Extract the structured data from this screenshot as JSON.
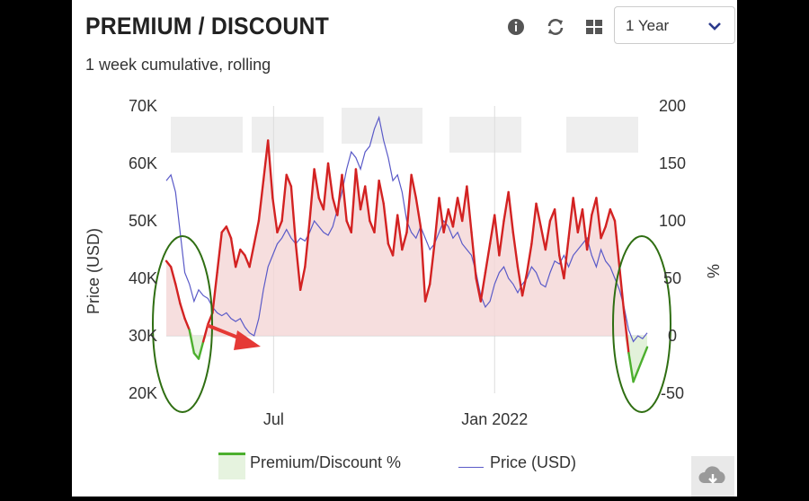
{
  "header": {
    "title": "PREMIUM / DISCOUNT",
    "subtitle": "1 week cumulative, rolling",
    "range_value": "1 Year"
  },
  "toolbar": {
    "icons": [
      "info-icon",
      "refresh-icon",
      "grid-icon",
      "chevron-down-icon",
      "cloud-download-icon"
    ]
  },
  "legend": {
    "premium_label": "Premium/Discount %",
    "price_label": "Price (USD)"
  },
  "colors": {
    "premium_positive": "#d32222",
    "premium_negative": "#4caf2e",
    "premium_fill": "#f4d6d6",
    "price_line": "#5a5ac8",
    "annotation_circle": "#2f6e12",
    "annotation_arrow": "#e53935"
  },
  "chart_data": {
    "type": "line",
    "title": "PREMIUM / DISCOUNT",
    "subtitle": "1 week cumulative, rolling",
    "x_ticks": [
      "Jul",
      "Jan 2022"
    ],
    "left_axis": {
      "label": "Price (USD)",
      "ticks": [
        "20K",
        "30K",
        "40K",
        "50K",
        "60K",
        "70K"
      ],
      "range": [
        20000,
        70000
      ]
    },
    "right_axis": {
      "label": "%",
      "ticks": [
        "-50",
        "0",
        "50",
        "100",
        "150",
        "200"
      ],
      "range": [
        -50,
        200
      ]
    },
    "x_range": [
      0,
      52
    ],
    "grid": "vertical at Jul and Jan 2022, horizontal at 0%",
    "series": [
      {
        "name": "Premium/Discount %",
        "axis": "right",
        "x": [
          0,
          0.5,
          1,
          1.5,
          2,
          2.5,
          3,
          3.5,
          4,
          4.5,
          5,
          5.5,
          6,
          6.5,
          7,
          7.5,
          8,
          8.5,
          9,
          9.5,
          10,
          10.5,
          11,
          11.5,
          12,
          12.5,
          13,
          13.5,
          14,
          14.5,
          15,
          15.5,
          16,
          16.5,
          17,
          17.5,
          18,
          18.5,
          19,
          19.5,
          20,
          20.5,
          21,
          21.5,
          22,
          22.5,
          23,
          23.5,
          24,
          24.5,
          25,
          25.5,
          26,
          26.5,
          27,
          27.5,
          28,
          28.5,
          29,
          29.5,
          30,
          30.5,
          31,
          31.5,
          32,
          32.5,
          33,
          33.5,
          34,
          34.5,
          35,
          35.5,
          36,
          36.5,
          37,
          37.5,
          38,
          38.5,
          39,
          39.5,
          40,
          40.5,
          41,
          41.5,
          42,
          42.5,
          43,
          43.5,
          44,
          44.5,
          45,
          45.5,
          46,
          46.5,
          47,
          47.5,
          48,
          48.5,
          49,
          49.5,
          50,
          50.5,
          51,
          51.5,
          52
        ],
        "values": [
          65,
          60,
          45,
          28,
          15,
          5,
          -15,
          -20,
          -5,
          10,
          20,
          55,
          90,
          95,
          85,
          60,
          75,
          70,
          60,
          80,
          100,
          135,
          170,
          120,
          90,
          100,
          140,
          130,
          80,
          40,
          60,
          100,
          145,
          120,
          110,
          150,
          120,
          105,
          140,
          100,
          90,
          145,
          110,
          130,
          100,
          90,
          135,
          115,
          80,
          70,
          105,
          75,
          90,
          140,
          120,
          95,
          30,
          45,
          80,
          120,
          90,
          110,
          95,
          120,
          100,
          130,
          90,
          50,
          30,
          55,
          80,
          105,
          70,
          100,
          125,
          90,
          60,
          35,
          55,
          80,
          115,
          95,
          75,
          100,
          110,
          70,
          50,
          85,
          120,
          90,
          110,
          75,
          105,
          120,
          85,
          95,
          110,
          100,
          60,
          20,
          -15,
          -40,
          -30,
          -20,
          -10
        ],
        "color_positive": "#d32222",
        "color_negative": "#4caf2e"
      },
      {
        "name": "Price (USD)",
        "axis": "left",
        "x": [
          0,
          0.5,
          1,
          1.5,
          2,
          2.5,
          3,
          3.5,
          4,
          4.5,
          5,
          5.5,
          6,
          6.5,
          7,
          7.5,
          8,
          8.5,
          9,
          9.5,
          10,
          10.5,
          11,
          11.5,
          12,
          12.5,
          13,
          13.5,
          14,
          14.5,
          15,
          15.5,
          16,
          16.5,
          17,
          17.5,
          18,
          18.5,
          19,
          19.5,
          20,
          20.5,
          21,
          21.5,
          22,
          22.5,
          23,
          23.5,
          24,
          24.5,
          25,
          25.5,
          26,
          26.5,
          27,
          27.5,
          28,
          28.5,
          29,
          29.5,
          30,
          30.5,
          31,
          31.5,
          32,
          32.5,
          33,
          33.5,
          34,
          34.5,
          35,
          35.5,
          36,
          36.5,
          37,
          37.5,
          38,
          38.5,
          39,
          39.5,
          40,
          40.5,
          41,
          41.5,
          42,
          42.5,
          43,
          43.5,
          44,
          44.5,
          45,
          45.5,
          46,
          46.5,
          47,
          47.5,
          48,
          48.5,
          49,
          49.5,
          50,
          50.5,
          51,
          51.5,
          52
        ],
        "values": [
          57000,
          58000,
          55000,
          48000,
          41000,
          39000,
          36000,
          38000,
          37000,
          36500,
          35000,
          34000,
          33500,
          34000,
          33000,
          32500,
          33000,
          31500,
          30500,
          30000,
          33000,
          38000,
          42000,
          44000,
          46000,
          47000,
          48500,
          47000,
          46000,
          47000,
          46500,
          48000,
          50000,
          49000,
          48000,
          47500,
          49000,
          52000,
          55000,
          59000,
          62000,
          61000,
          59000,
          62000,
          63000,
          66000,
          68000,
          64000,
          61000,
          57000,
          58000,
          55000,
          50000,
          48000,
          47000,
          49000,
          47000,
          45000,
          46000,
          48000,
          50000,
          49000,
          47000,
          48000,
          46000,
          45000,
          44000,
          41000,
          37000,
          35000,
          36000,
          39000,
          41000,
          42000,
          40000,
          39000,
          37500,
          39000,
          40000,
          42000,
          41000,
          39000,
          38500,
          41000,
          43000,
          42500,
          44000,
          42000,
          44000,
          45000,
          46000,
          47000,
          44000,
          42000,
          45000,
          43000,
          42000,
          40000,
          38000,
          35000,
          31000,
          29000,
          30000,
          29500,
          30500
        ],
        "color": "#5a5ac8"
      }
    ],
    "annotations": [
      "green ellipse left (mid-2021 discount)",
      "red arrow to price low",
      "green ellipse right (recent discount)"
    ]
  }
}
